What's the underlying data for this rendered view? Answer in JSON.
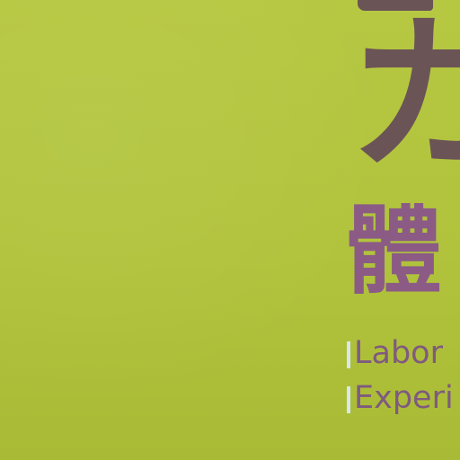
{
  "poster": {
    "title_glyph": "カ",
    "kanji": "體",
    "line1": "Labor",
    "line2": "Experi"
  },
  "colors": {
    "background": "#b4c53f",
    "title_color": "#6b5456",
    "kanji_color": "#8b5b86",
    "english_color": "#7f5a7f",
    "highlight": "#d7e6ef"
  }
}
